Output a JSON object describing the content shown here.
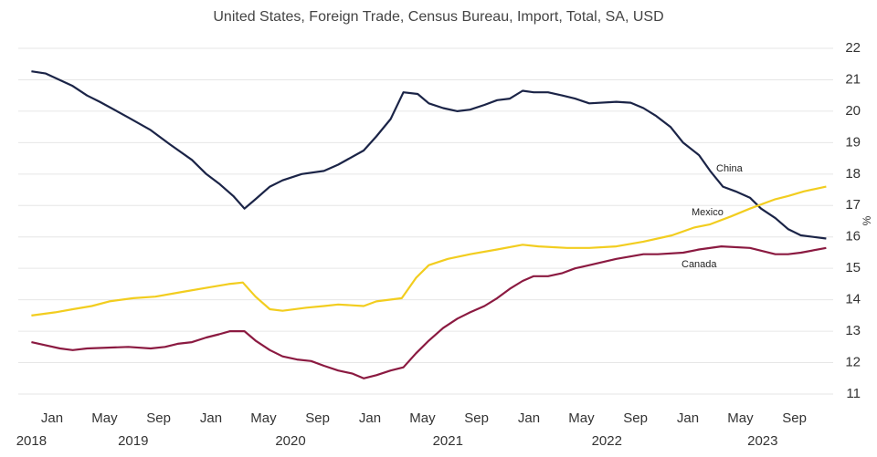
{
  "chart_data": {
    "type": "line",
    "title": "United States, Foreign Trade, Census Bureau, Import, Total, SA, USD",
    "y_label": "%",
    "xlim": [
      2017.87,
      2022.87
    ],
    "ylim": [
      11,
      22
    ],
    "yticks": [
      11,
      12,
      13,
      14,
      15,
      16,
      17,
      18,
      19,
      20,
      21,
      22
    ],
    "grid": true,
    "xticks": [
      {
        "value": 2018.0,
        "label": "Jan"
      },
      {
        "value": 2018.33,
        "label": "May"
      },
      {
        "value": 2018.67,
        "label": "Sep"
      },
      {
        "value": 2019.0,
        "label": "Jan"
      },
      {
        "value": 2019.33,
        "label": "May"
      },
      {
        "value": 2019.67,
        "label": "Sep"
      },
      {
        "value": 2020.0,
        "label": "Jan"
      },
      {
        "value": 2020.33,
        "label": "May"
      },
      {
        "value": 2020.67,
        "label": "Sep"
      },
      {
        "value": 2021.0,
        "label": "Jan"
      },
      {
        "value": 2021.33,
        "label": "May"
      },
      {
        "value": 2021.67,
        "label": "Sep"
      },
      {
        "value": 2022.0,
        "label": "Jan"
      },
      {
        "value": 2022.33,
        "label": "May"
      },
      {
        "value": 2022.67,
        "label": "Sep"
      }
    ],
    "year_ticks": [
      {
        "value": 2017.87,
        "label": "2018"
      },
      {
        "value": 2018.51,
        "label": "2019"
      },
      {
        "value": 2019.5,
        "label": "2020"
      },
      {
        "value": 2020.49,
        "label": "2021"
      },
      {
        "value": 2021.49,
        "label": "2022"
      },
      {
        "value": 2022.47,
        "label": "2023"
      }
    ],
    "series": [
      {
        "name": "China",
        "color": "#1b2447",
        "x": [
          2017.87,
          2017.96,
          2018.13,
          2018.22,
          2018.3,
          2018.48,
          2018.62,
          2018.74,
          2018.88,
          2018.97,
          2019.05,
          2019.14,
          2019.21,
          2019.28,
          2019.37,
          2019.45,
          2019.57,
          2019.71,
          2019.8,
          2019.96,
          2020.04,
          2020.13,
          2020.21,
          2020.3,
          2020.37,
          2020.46,
          2020.55,
          2020.63,
          2020.72,
          2020.8,
          2020.88,
          2020.96,
          2021.03,
          2021.12,
          2021.21,
          2021.29,
          2021.38,
          2021.55,
          2021.64,
          2021.72,
          2021.8,
          2021.89,
          2021.97,
          2022.07,
          2022.14,
          2022.22,
          2022.3,
          2022.39,
          2022.46,
          2022.55,
          2022.63,
          2022.71,
          2022.87
        ],
        "values": [
          21.27,
          21.2,
          20.8,
          20.5,
          20.3,
          19.8,
          19.4,
          18.95,
          18.45,
          18.0,
          17.7,
          17.3,
          16.9,
          17.2,
          17.6,
          17.8,
          18.0,
          18.1,
          18.3,
          18.75,
          19.2,
          19.75,
          20.6,
          20.55,
          20.25,
          20.1,
          20.0,
          20.05,
          20.2,
          20.35,
          20.4,
          20.65,
          20.6,
          20.6,
          20.5,
          20.4,
          20.25,
          20.3,
          20.27,
          20.1,
          19.85,
          19.5,
          19.0,
          18.6,
          18.1,
          17.6,
          17.45,
          17.25,
          16.9,
          16.6,
          16.25,
          16.05,
          15.95
        ]
      },
      {
        "name": "Mexico",
        "color": "#f2cd1f",
        "x": [
          2017.87,
          2018.02,
          2018.13,
          2018.25,
          2018.36,
          2018.51,
          2018.65,
          2018.82,
          2018.99,
          2019.11,
          2019.2,
          2019.28,
          2019.37,
          2019.45,
          2019.6,
          2019.71,
          2019.8,
          2019.96,
          2020.04,
          2020.2,
          2020.29,
          2020.37,
          2020.49,
          2020.63,
          2020.8,
          2020.96,
          2021.06,
          2021.24,
          2021.38,
          2021.55,
          2021.72,
          2021.9,
          2022.04,
          2022.14,
          2022.27,
          2022.39,
          2022.55,
          2022.63,
          2022.73,
          2022.87
        ],
        "values": [
          13.5,
          13.6,
          13.7,
          13.8,
          13.95,
          14.05,
          14.1,
          14.25,
          14.4,
          14.5,
          14.55,
          14.1,
          13.7,
          13.65,
          13.75,
          13.8,
          13.85,
          13.8,
          13.95,
          14.05,
          14.7,
          15.1,
          15.3,
          15.45,
          15.6,
          15.75,
          15.7,
          15.65,
          15.65,
          15.7,
          15.85,
          16.05,
          16.3,
          16.4,
          16.65,
          16.9,
          17.2,
          17.3,
          17.45,
          17.6
        ]
      },
      {
        "name": "Canada",
        "color": "#8b1a41",
        "x": [
          2017.87,
          2017.96,
          2018.05,
          2018.13,
          2018.22,
          2018.48,
          2018.62,
          2018.71,
          2018.79,
          2018.88,
          2018.97,
          2019.05,
          2019.12,
          2019.21,
          2019.28,
          2019.37,
          2019.45,
          2019.54,
          2019.63,
          2019.71,
          2019.8,
          2019.89,
          2019.96,
          2020.04,
          2020.13,
          2020.21,
          2020.29,
          2020.37,
          2020.46,
          2020.55,
          2020.63,
          2020.72,
          2020.8,
          2020.88,
          2020.96,
          2021.03,
          2021.12,
          2021.21,
          2021.29,
          2021.38,
          2021.55,
          2021.72,
          2021.81,
          2021.97,
          2022.07,
          2022.21,
          2022.39,
          2022.55,
          2022.63,
          2022.71,
          2022.87
        ],
        "values": [
          12.65,
          12.55,
          12.45,
          12.4,
          12.45,
          12.5,
          12.45,
          12.5,
          12.6,
          12.65,
          12.8,
          12.9,
          13.0,
          13.0,
          12.7,
          12.4,
          12.2,
          12.1,
          12.05,
          11.9,
          11.75,
          11.65,
          11.5,
          11.6,
          11.75,
          11.85,
          12.3,
          12.7,
          13.1,
          13.4,
          13.6,
          13.8,
          14.05,
          14.35,
          14.6,
          14.75,
          14.75,
          14.85,
          15.0,
          15.1,
          15.3,
          15.45,
          15.45,
          15.5,
          15.6,
          15.7,
          15.65,
          15.45,
          15.45,
          15.5,
          15.65
        ]
      }
    ]
  }
}
